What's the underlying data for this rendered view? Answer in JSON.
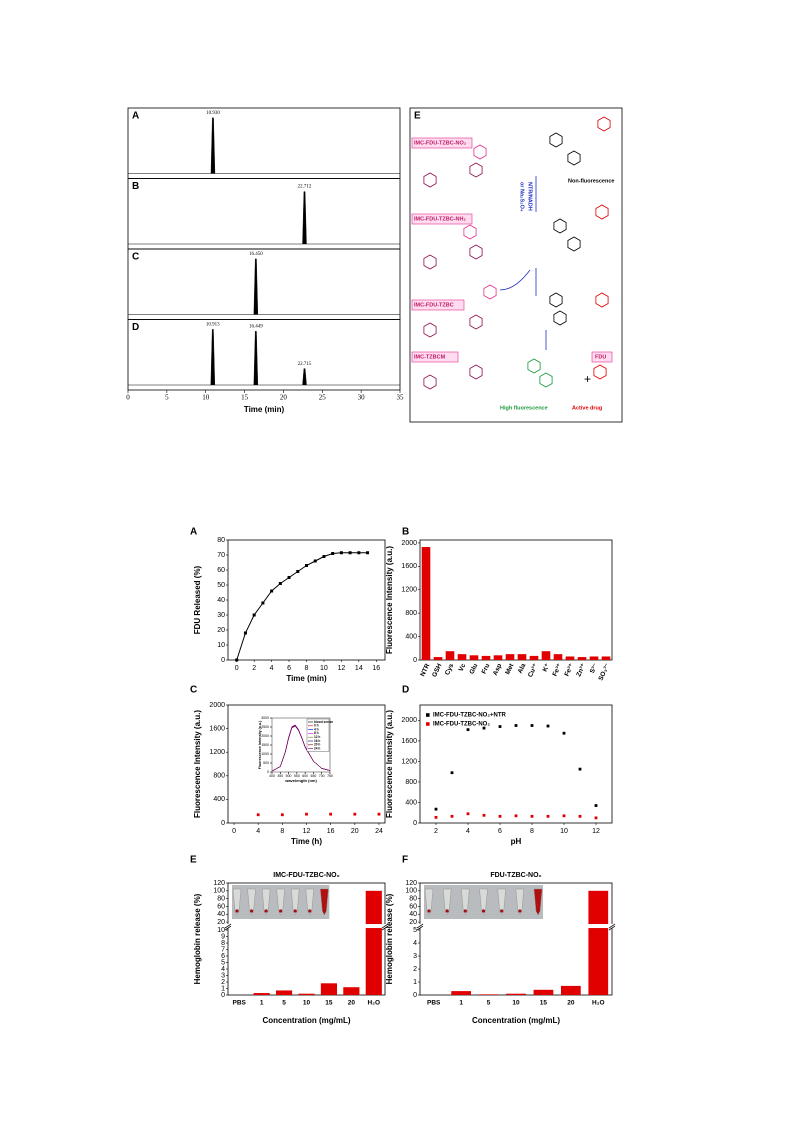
{
  "chart_data": [
    {
      "type": "chromatogram",
      "xlim": [
        0,
        35
      ],
      "xticks": [
        0,
        5,
        10,
        15,
        20,
        25,
        30,
        35
      ],
      "ylim": [
        0,
        1
      ],
      "xlabel": "Time (min)",
      "panels": [
        {
          "label": "A",
          "peaks": [
            {
              "x": 10.93,
              "label": "10.930",
              "height": 0.85
            }
          ]
        },
        {
          "label": "B",
          "peaks": [
            {
              "x": 22.712,
              "label": "22.712",
              "height": 0.8
            }
          ]
        },
        {
          "label": "C",
          "peaks": [
            {
              "x": 16.45,
              "label": "16.450",
              "height": 0.85
            }
          ]
        },
        {
          "label": "D",
          "peaks": [
            {
              "x": 10.913,
              "label": "10.913",
              "height": 0.85
            },
            {
              "x": 16.449,
              "label": "16.449",
              "height": 0.82
            },
            {
              "x": 22.715,
              "label": "22.715",
              "height": 0.25
            }
          ]
        }
      ]
    },
    {
      "type": "line",
      "label": "A",
      "xlabel": "Time (min)",
      "ylabel": "FDU Released (%)",
      "color": "#000000",
      "x": [
        0,
        1,
        2,
        3,
        4,
        5,
        6,
        7,
        8,
        9,
        10,
        11,
        12,
        13,
        14,
        15
      ],
      "values": [
        0,
        18,
        30,
        38,
        46,
        51,
        55,
        59,
        63,
        66,
        69,
        71,
        71.5,
        71.5,
        71.5,
        71.5
      ],
      "xlim": [
        -1,
        17
      ],
      "xticks": [
        0,
        2,
        4,
        6,
        8,
        10,
        12,
        14,
        16
      ],
      "ylim": [
        0,
        80
      ],
      "yticks": [
        0,
        10,
        20,
        30,
        40,
        50,
        60,
        70,
        80
      ]
    },
    {
      "type": "bar",
      "label": "B",
      "ylabel": "Fluorescence Intensity (a.u.)",
      "color": "#e00000",
      "categories": [
        "NTR",
        "GSH",
        "Cys",
        "Vc",
        "Glu",
        "Fru",
        "Asp",
        "Met",
        "Ala",
        "Cu²⁺",
        "K⁺",
        "Fe³⁺",
        "Fe²⁺",
        "Zn²⁺",
        "S²⁻",
        "SO₃²⁻"
      ],
      "values": [
        1930,
        50,
        150,
        100,
        80,
        70,
        80,
        100,
        100,
        70,
        150,
        100,
        60,
        50,
        60,
        60
      ],
      "ylim": [
        0,
        2050
      ],
      "yticks": [
        0,
        400,
        800,
        1200,
        1600,
        2000
      ]
    },
    {
      "type": "scatter",
      "label": "C",
      "xlabel": "Time (h)",
      "ylabel": "Fluorescence Intensity (a.u.)",
      "color": "#e00000",
      "x": [
        4,
        8,
        12,
        16,
        20,
        24
      ],
      "values": [
        140,
        140,
        150,
        150,
        150,
        150
      ],
      "xlim": [
        -1,
        25
      ],
      "xticks": [
        0,
        4,
        8,
        12,
        16,
        20,
        24
      ],
      "ylim": [
        0,
        2000
      ],
      "yticks": [
        0,
        400,
        800,
        1200,
        1600,
        2000
      ]
    },
    {
      "type": "line",
      "xlabel": "wavelength (nm)",
      "ylabel": "Fluorescence Intensity (a.u.)",
      "legend": "upper right",
      "x": [
        400,
        450,
        480,
        500,
        520,
        540,
        560,
        580,
        600,
        650,
        700,
        750
      ],
      "series": [
        {
          "name": "blood serum",
          "color": "#000000",
          "values": [
            50,
            300,
            1100,
            1900,
            2500,
            2600,
            2350,
            1900,
            1400,
            600,
            200,
            80
          ]
        },
        {
          "name": "0 h",
          "color": "#e00000",
          "values": [
            50,
            300,
            1100,
            1880,
            2480,
            2580,
            2330,
            1890,
            1390,
            600,
            200,
            80
          ]
        },
        {
          "name": "4 h",
          "color": "#0000e0",
          "values": [
            50,
            300,
            1100,
            1870,
            2460,
            2560,
            2320,
            1880,
            1380,
            600,
            200,
            80
          ]
        },
        {
          "name": "8 h",
          "color": "#e000e0",
          "values": [
            50,
            310,
            1120,
            1920,
            2520,
            2620,
            2370,
            1910,
            1410,
            610,
            200,
            80
          ]
        },
        {
          "name": "12 h",
          "color": "#808000",
          "values": [
            50,
            300,
            1090,
            1860,
            2450,
            2540,
            2300,
            1870,
            1370,
            590,
            200,
            80
          ]
        },
        {
          "name": "16 h",
          "color": "#000080",
          "values": [
            50,
            300,
            1100,
            1890,
            2490,
            2590,
            2340,
            1895,
            1395,
            600,
            200,
            80
          ]
        },
        {
          "name": "20 h",
          "color": "#800000",
          "values": [
            50,
            300,
            1100,
            1875,
            2470,
            2570,
            2325,
            1885,
            1385,
            600,
            200,
            80
          ]
        },
        {
          "name": "24 h",
          "color": "#800080",
          "values": [
            50,
            300,
            1095,
            1865,
            2455,
            2550,
            2310,
            1875,
            1375,
            595,
            200,
            80
          ]
        }
      ],
      "xlim": [
        400,
        750
      ],
      "xticks": [
        400,
        450,
        500,
        550,
        600,
        650,
        700,
        750
      ],
      "ylim": [
        0,
        3000
      ],
      "yticks": [
        0,
        500,
        1000,
        1500,
        2000,
        2500,
        3000
      ]
    },
    {
      "type": "scatter",
      "label": "D",
      "xlabel": "pH",
      "ylabel": "Fluorescence Intensity (a.u.)",
      "legend": "upper left",
      "x": [
        2,
        3,
        4,
        5,
        6,
        7,
        8,
        9,
        10,
        11,
        12
      ],
      "series": [
        {
          "name": "IMC-FDU-TZBC-NO₂+NTR",
          "color": "#000000",
          "values": [
            270,
            980,
            1820,
            1850,
            1880,
            1900,
            1900,
            1890,
            1750,
            1050,
            340
          ]
        },
        {
          "name": "IMC-FDU-TZBC-NO₂",
          "color": "#e00000",
          "values": [
            110,
            130,
            180,
            150,
            130,
            140,
            130,
            130,
            140,
            130,
            100
          ]
        }
      ],
      "xlim": [
        1,
        13
      ],
      "xticks": [
        2,
        4,
        6,
        8,
        10,
        12
      ],
      "ylim": [
        0,
        2300
      ],
      "yticks": [
        0,
        400,
        800,
        1200,
        1600,
        2000
      ]
    },
    {
      "type": "bar",
      "label": "E",
      "title": "IMC-FDU-TZBC-NO₂",
      "xlabel": "Concentration (mg/mL)",
      "ylabel": "Hemoglobin release (%)",
      "color": "#e00000",
      "categories": [
        "PBS",
        "1",
        "5",
        "10",
        "15",
        "20",
        "H₂O"
      ],
      "values": [
        0,
        0.3,
        0.7,
        0.2,
        1.8,
        1.2,
        100
      ],
      "ylim": [
        0,
        120
      ],
      "ybreak": [
        10,
        20
      ],
      "yticks": [
        0,
        1,
        2,
        3,
        4,
        5,
        6,
        7,
        8,
        9,
        10,
        20,
        40,
        60,
        80,
        100,
        120
      ]
    },
    {
      "type": "bar",
      "label": "F",
      "title": "FDU-TZBC-NO₂",
      "xlabel": "Concentration (mg/mL)",
      "ylabel": "Hemoglobin release (%)",
      "color": "#e00000",
      "categories": [
        "PBS",
        "1",
        "5",
        "10",
        "15",
        "20",
        "H₂O"
      ],
      "values": [
        0,
        0.3,
        0.05,
        0.1,
        0.4,
        0.7,
        100
      ],
      "ylim": [
        0,
        120
      ],
      "ybreak": [
        5,
        20
      ],
      "yticks": [
        0,
        1,
        2,
        3,
        4,
        5,
        20,
        40,
        60,
        80,
        100,
        120
      ]
    }
  ],
  "scheme": {
    "label": "E",
    "compounds": [
      "IMC-FDU-TZBC-NO₂",
      "IMC-FDU-TZBC-NH₂",
      "IMC-FDU-TZBC",
      "IMC-TZBCM",
      "FDU"
    ],
    "notes": [
      "Non-fluorescence",
      "NTR/NADH",
      "or Na₂S₂O₄",
      "High fluorescence",
      "Active drug"
    ]
  }
}
